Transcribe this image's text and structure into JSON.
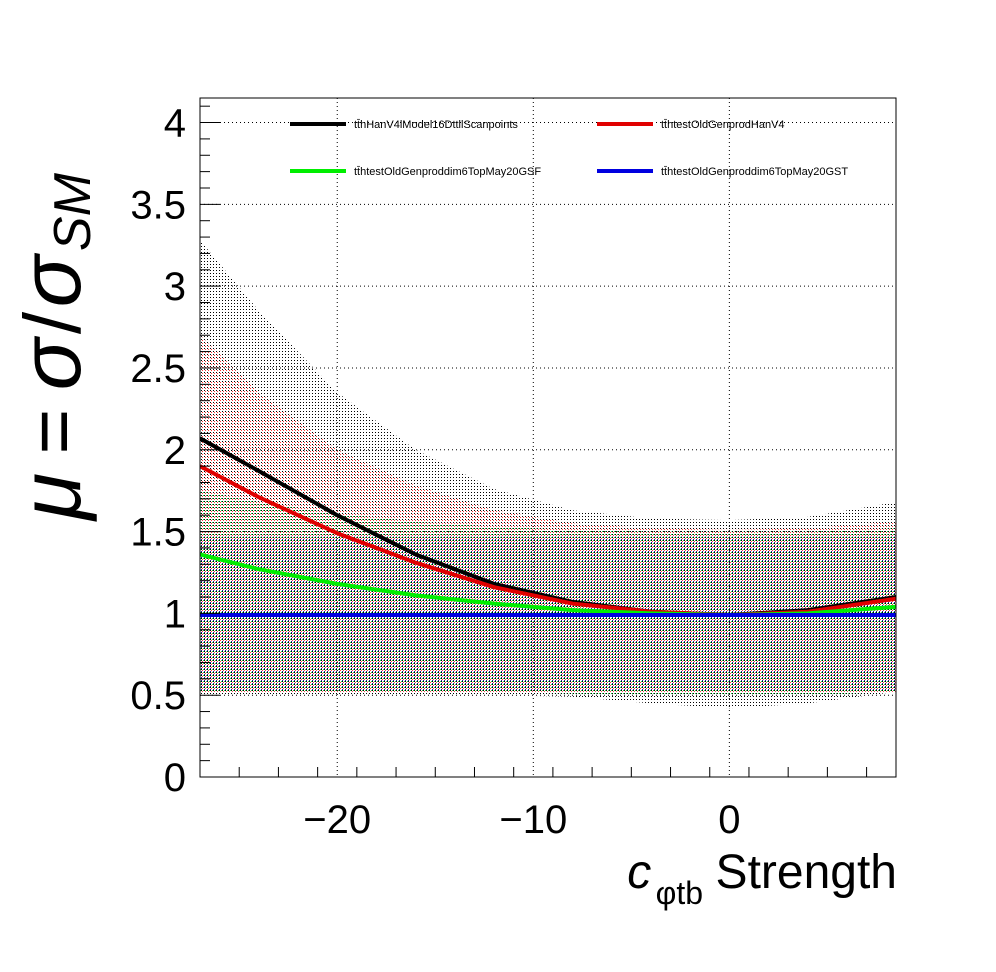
{
  "chart_data": {
    "type": "line",
    "ylabel": {
      "mu": "μ",
      "eq": "=",
      "sigma": "σ",
      "slash": "/",
      "sigma2": "σ",
      "sub": "SM"
    },
    "xlabel": {
      "c": "c",
      "sub": "φtb",
      "rest": "Strength"
    },
    "xlim": [
      -27,
      8.5
    ],
    "ylim": [
      0,
      4.15
    ],
    "x_ticks": [
      -20,
      -10,
      0
    ],
    "x_tick_labels": [
      "−20",
      "−10",
      "0"
    ],
    "y_ticks": [
      0,
      0.5,
      1,
      1.5,
      2,
      2.5,
      3,
      3.5,
      4
    ],
    "y_tick_labels": [
      "0",
      "0.5",
      "1",
      "1.5",
      "2",
      "2.5",
      "3",
      "3.5",
      "4"
    ],
    "grid": true,
    "legend_position": "top",
    "series": [
      {
        "name": "tt̄hHanV4lModel16DttllScanpoints",
        "color": "#000000",
        "x": [
          -27,
          -24,
          -20,
          -16,
          -12,
          -8,
          -4,
          0,
          4,
          8.5
        ],
        "y": [
          2.07,
          1.87,
          1.6,
          1.36,
          1.18,
          1.07,
          1.01,
          0.99,
          1.02,
          1.1
        ]
      },
      {
        "name": "tt̄htestOldGenprodHanV4",
        "color": "#e00000",
        "x": [
          -27,
          -24,
          -20,
          -16,
          -12,
          -8,
          -4,
          0,
          4,
          8.5
        ],
        "y": [
          1.9,
          1.71,
          1.49,
          1.31,
          1.16,
          1.06,
          1.01,
          0.99,
          1.01,
          1.09
        ]
      },
      {
        "name": "tt̄htestOldGenproddim6TopMay20GSF",
        "color": "#00ee00",
        "x": [
          -27,
          -24,
          -20,
          -16,
          -12,
          -8,
          -4,
          0,
          4,
          8.5
        ],
        "y": [
          1.36,
          1.27,
          1.18,
          1.11,
          1.06,
          1.02,
          1.0,
          0.99,
          1.0,
          1.04
        ]
      },
      {
        "name": "tt̄htestOldGenproddim6TopMay20GST",
        "color": "#0000e0",
        "x": [
          -27,
          -24,
          -20,
          -16,
          -12,
          -8,
          -4,
          0,
          4,
          8.5
        ],
        "y": [
          0.99,
          0.99,
          0.99,
          0.99,
          0.99,
          0.99,
          0.99,
          0.99,
          0.99,
          0.99
        ]
      }
    ],
    "bands": [
      {
        "series": "tt̄hHanV4lModel16DttllScanpoints",
        "color": "#000000",
        "x": [
          -27,
          -24,
          -20,
          -16,
          -12,
          -8,
          -4,
          0,
          4,
          8.5
        ],
        "y_low": [
          0.5,
          0.5,
          0.5,
          0.5,
          0.5,
          0.49,
          0.45,
          0.42,
          0.45,
          0.52
        ],
        "y_high": [
          3.28,
          2.85,
          2.35,
          2.0,
          1.76,
          1.63,
          1.58,
          1.57,
          1.59,
          1.68
        ]
      },
      {
        "series": "tt̄htestOldGenprodHanV4",
        "color": "#ff6a6a",
        "x": [
          -27,
          -24,
          -20,
          -16,
          -12,
          -8,
          -4,
          0,
          4,
          8.5
        ],
        "y_low": [
          0.52,
          0.52,
          0.52,
          0.52,
          0.52,
          0.52,
          0.52,
          0.52,
          0.52,
          0.52
        ],
        "y_high": [
          2.7,
          2.35,
          2.0,
          1.78,
          1.63,
          1.55,
          1.52,
          1.51,
          1.52,
          1.56
        ]
      },
      {
        "series": "tt̄htestOldGenproddim6TopMay20GSF",
        "color": "#44dd66",
        "x": [
          -27,
          -24,
          -20,
          -16,
          -12,
          -8,
          -4,
          0,
          4,
          8.5
        ],
        "y_low": [
          0.52,
          0.52,
          0.52,
          0.52,
          0.52,
          0.51,
          0.5,
          0.5,
          0.5,
          0.52
        ],
        "y_high": [
          1.75,
          1.68,
          1.61,
          1.56,
          1.53,
          1.51,
          1.5,
          1.5,
          1.5,
          1.52
        ]
      },
      {
        "series": "tt̄htestOldGenproddim6TopMay20GST",
        "color": "#2222aa",
        "x": [
          -27,
          8.5
        ],
        "y_low": [
          0.52,
          0.52
        ],
        "y_high": [
          1.47,
          1.47
        ]
      }
    ]
  }
}
